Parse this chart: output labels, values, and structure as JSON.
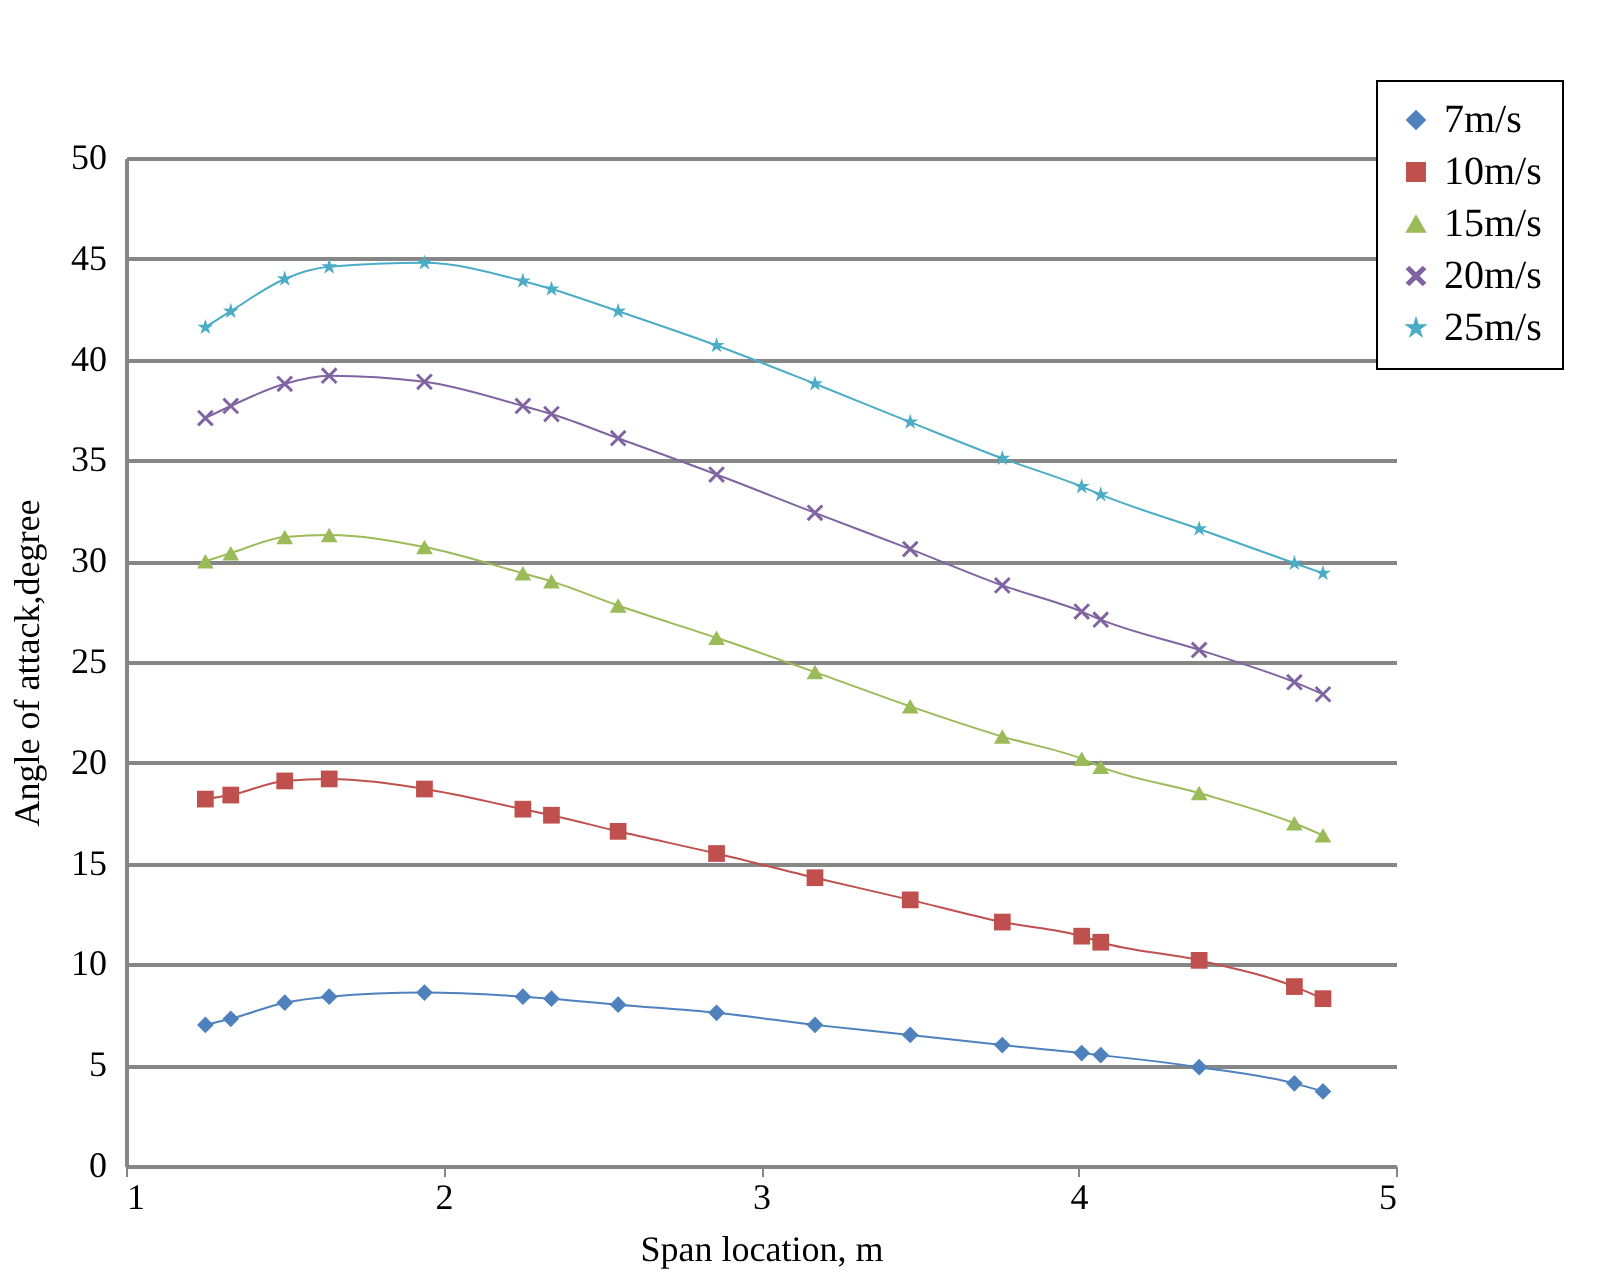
{
  "chart_data": {
    "type": "line",
    "xlabel": "Span location, m",
    "ylabel": "Angle of attack,degree",
    "x": [
      1.25,
      1.33,
      1.5,
      1.64,
      1.94,
      2.25,
      2.34,
      2.55,
      2.86,
      3.17,
      3.47,
      3.76,
      4.01,
      4.07,
      4.38,
      4.68,
      4.77
    ],
    "series": [
      {
        "name": "7m/s",
        "color": "#4f81bd",
        "marker": "diamond",
        "values": [
          7.0,
          7.3,
          8.1,
          8.4,
          8.6,
          8.4,
          8.3,
          8.0,
          7.6,
          7.0,
          6.5,
          6.0,
          5.6,
          5.5,
          4.9,
          4.1,
          3.7
        ]
      },
      {
        "name": "10m/s",
        "color": "#c0504d",
        "marker": "square",
        "values": [
          18.2,
          18.4,
          19.1,
          19.2,
          18.7,
          17.7,
          17.4,
          16.6,
          15.5,
          14.3,
          13.2,
          12.1,
          11.4,
          11.1,
          10.2,
          8.9,
          8.3
        ]
      },
      {
        "name": "15m/s",
        "color": "#9bbb59",
        "marker": "triangle",
        "values": [
          30.0,
          30.4,
          31.2,
          31.3,
          30.7,
          29.4,
          29.0,
          27.8,
          26.2,
          24.5,
          22.8,
          21.3,
          20.2,
          19.8,
          18.5,
          17.0,
          16.4
        ]
      },
      {
        "name": "20m/s",
        "color": "#8064a2",
        "marker": "cross",
        "values": [
          37.1,
          37.7,
          38.8,
          39.2,
          38.9,
          37.7,
          37.3,
          36.1,
          34.3,
          32.4,
          30.6,
          28.8,
          27.5,
          27.1,
          25.6,
          24.0,
          23.4
        ]
      },
      {
        "name": "25m/s",
        "color": "#4bacc6",
        "marker": "star",
        "values": [
          41.6,
          42.4,
          44.0,
          44.6,
          44.8,
          43.9,
          43.5,
          42.4,
          40.7,
          38.8,
          36.9,
          35.1,
          33.7,
          33.3,
          31.6,
          29.9,
          29.4
        ]
      }
    ],
    "xlim": [
      1,
      5
    ],
    "xticks": [
      1,
      2,
      3,
      4,
      5
    ],
    "ylim": [
      0,
      50
    ],
    "yticks": [
      0,
      5,
      10,
      15,
      20,
      25,
      30,
      35,
      40,
      45,
      50
    ],
    "grid": "y",
    "legend": "top right",
    "line_style": "solid"
  }
}
